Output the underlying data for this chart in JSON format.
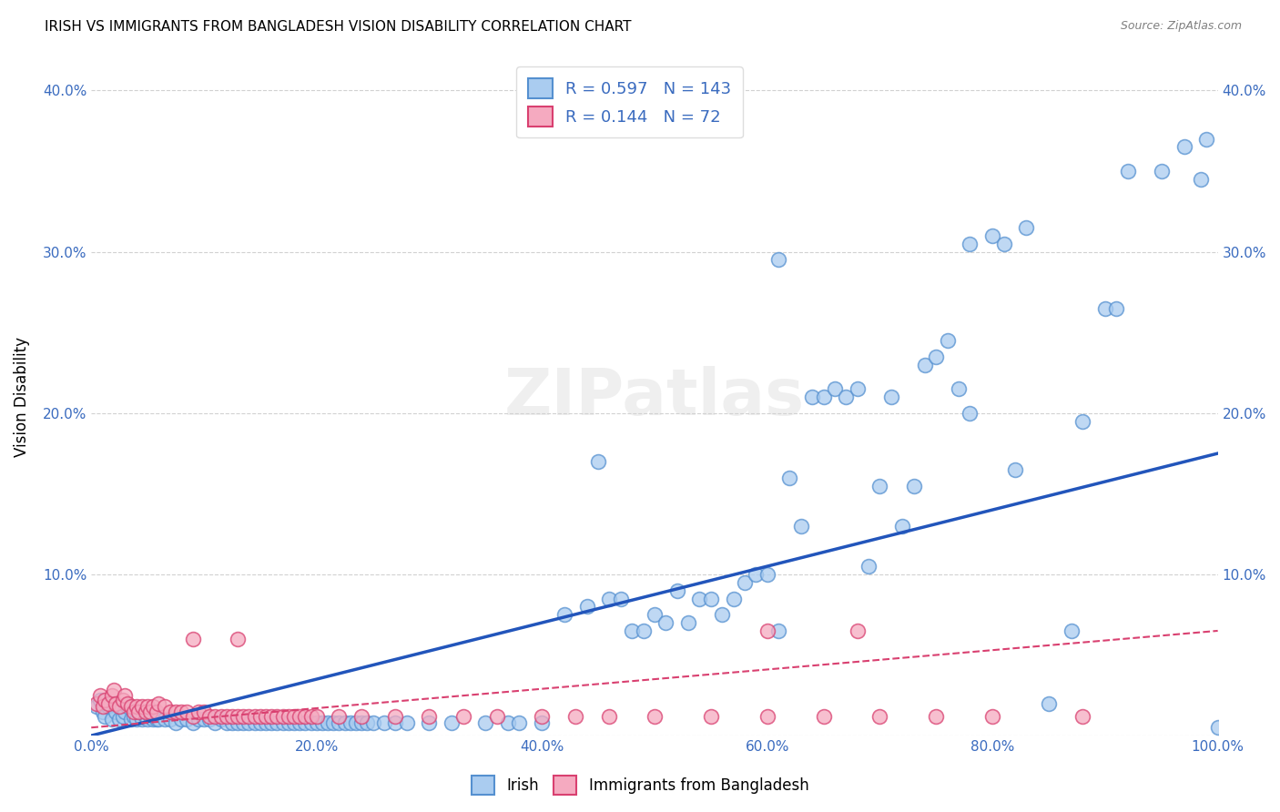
{
  "title": "IRISH VS IMMIGRANTS FROM BANGLADESH VISION DISABILITY CORRELATION CHART",
  "source": "Source: ZipAtlas.com",
  "ylabel": "Vision Disability",
  "xlim": [
    0.0,
    1.0
  ],
  "ylim": [
    0.0,
    0.42
  ],
  "xtick_vals": [
    0.0,
    0.2,
    0.4,
    0.6,
    0.8,
    1.0
  ],
  "xtick_labels": [
    "0.0%",
    "20.0%",
    "40.0%",
    "60.0%",
    "80.0%",
    "100.0%"
  ],
  "ytick_vals": [
    0.0,
    0.1,
    0.2,
    0.3,
    0.4
  ],
  "ytick_labels": [
    "",
    "10.0%",
    "20.0%",
    "30.0%",
    "40.0%"
  ],
  "irish_color": "#aaccf0",
  "irish_edge_color": "#5590d0",
  "bangladesh_color": "#f5aac0",
  "bangladesh_edge_color": "#d94070",
  "irish_line_color": "#2255bb",
  "bangladesh_line_color": "#d94070",
  "legend_irish_label": "Irish",
  "legend_bangladesh_label": "Immigrants from Bangladesh",
  "R_irish": 0.597,
  "N_irish": 143,
  "R_bangladesh": 0.144,
  "N_bangladesh": 72,
  "watermark": "ZIPatlas",
  "grid_color": "#cccccc",
  "title_fontsize": 11,
  "axis_color": "#3a6bbf",
  "irish_trend_x0": 0.0,
  "irish_trend_y0": 0.0,
  "irish_trend_x1": 1.0,
  "irish_trend_y1": 0.175,
  "bang_trend_x0": 0.0,
  "bang_trend_y0": 0.005,
  "bang_trend_x1": 1.0,
  "bang_trend_y1": 0.065,
  "irish_x": [
    0.005,
    0.008,
    0.01,
    0.012,
    0.015,
    0.018,
    0.02,
    0.022,
    0.025,
    0.028,
    0.03,
    0.032,
    0.035,
    0.038,
    0.04,
    0.042,
    0.045,
    0.048,
    0.05,
    0.052,
    0.055,
    0.058,
    0.06,
    0.065,
    0.07,
    0.075,
    0.08,
    0.085,
    0.09,
    0.095,
    0.1,
    0.105,
    0.11,
    0.115,
    0.12,
    0.125,
    0.13,
    0.135,
    0.14,
    0.145,
    0.15,
    0.155,
    0.16,
    0.165,
    0.17,
    0.175,
    0.18,
    0.185,
    0.19,
    0.195,
    0.2,
    0.205,
    0.21,
    0.215,
    0.22,
    0.225,
    0.23,
    0.235,
    0.24,
    0.245,
    0.25,
    0.26,
    0.27,
    0.28,
    0.3,
    0.32,
    0.35,
    0.37,
    0.38,
    0.4,
    0.42,
    0.44,
    0.45,
    0.46,
    0.47,
    0.48,
    0.49,
    0.5,
    0.51,
    0.52,
    0.53,
    0.54,
    0.55,
    0.56,
    0.57,
    0.58,
    0.59,
    0.6,
    0.61,
    0.62,
    0.63,
    0.64,
    0.65,
    0.66,
    0.67,
    0.68,
    0.69,
    0.7,
    0.71,
    0.72,
    0.73,
    0.74,
    0.75,
    0.76,
    0.77,
    0.78,
    0.8,
    0.81,
    0.83,
    0.85,
    0.87,
    0.88,
    0.9,
    0.91,
    0.92,
    0.95,
    0.97,
    0.985,
    0.99,
    1.0,
    0.61,
    0.82,
    0.78
  ],
  "irish_y": [
    0.018,
    0.022,
    0.015,
    0.012,
    0.018,
    0.01,
    0.02,
    0.015,
    0.01,
    0.012,
    0.015,
    0.018,
    0.01,
    0.012,
    0.01,
    0.015,
    0.01,
    0.012,
    0.01,
    0.012,
    0.01,
    0.01,
    0.01,
    0.01,
    0.01,
    0.008,
    0.01,
    0.01,
    0.008,
    0.01,
    0.01,
    0.01,
    0.008,
    0.01,
    0.008,
    0.008,
    0.008,
    0.008,
    0.008,
    0.008,
    0.008,
    0.008,
    0.008,
    0.008,
    0.008,
    0.008,
    0.008,
    0.008,
    0.008,
    0.008,
    0.008,
    0.008,
    0.008,
    0.008,
    0.008,
    0.008,
    0.008,
    0.008,
    0.008,
    0.008,
    0.008,
    0.008,
    0.008,
    0.008,
    0.008,
    0.008,
    0.008,
    0.008,
    0.008,
    0.008,
    0.075,
    0.08,
    0.17,
    0.085,
    0.085,
    0.065,
    0.065,
    0.075,
    0.07,
    0.09,
    0.07,
    0.085,
    0.085,
    0.075,
    0.085,
    0.095,
    0.1,
    0.1,
    0.065,
    0.16,
    0.13,
    0.21,
    0.21,
    0.215,
    0.21,
    0.215,
    0.105,
    0.155,
    0.21,
    0.13,
    0.155,
    0.23,
    0.235,
    0.245,
    0.215,
    0.2,
    0.31,
    0.305,
    0.315,
    0.02,
    0.065,
    0.195,
    0.265,
    0.265,
    0.35,
    0.35,
    0.365,
    0.345,
    0.37,
    0.005,
    0.295,
    0.165,
    0.305
  ],
  "bang_x": [
    0.005,
    0.008,
    0.01,
    0.012,
    0.015,
    0.018,
    0.02,
    0.022,
    0.025,
    0.028,
    0.03,
    0.032,
    0.035,
    0.038,
    0.04,
    0.042,
    0.045,
    0.048,
    0.05,
    0.052,
    0.055,
    0.058,
    0.06,
    0.065,
    0.07,
    0.075,
    0.08,
    0.085,
    0.09,
    0.095,
    0.1,
    0.105,
    0.11,
    0.115,
    0.12,
    0.125,
    0.13,
    0.135,
    0.14,
    0.145,
    0.15,
    0.155,
    0.16,
    0.165,
    0.17,
    0.175,
    0.18,
    0.185,
    0.19,
    0.195,
    0.2,
    0.22,
    0.24,
    0.27,
    0.3,
    0.33,
    0.36,
    0.4,
    0.43,
    0.46,
    0.5,
    0.55,
    0.6,
    0.65,
    0.7,
    0.75,
    0.8,
    0.88,
    0.6,
    0.68,
    0.09,
    0.13
  ],
  "bang_y": [
    0.02,
    0.025,
    0.018,
    0.022,
    0.02,
    0.025,
    0.028,
    0.02,
    0.018,
    0.022,
    0.025,
    0.02,
    0.018,
    0.015,
    0.018,
    0.015,
    0.018,
    0.015,
    0.018,
    0.015,
    0.018,
    0.015,
    0.02,
    0.018,
    0.015,
    0.015,
    0.015,
    0.015,
    0.012,
    0.015,
    0.015,
    0.012,
    0.012,
    0.012,
    0.012,
    0.012,
    0.012,
    0.012,
    0.012,
    0.012,
    0.012,
    0.012,
    0.012,
    0.012,
    0.012,
    0.012,
    0.012,
    0.012,
    0.012,
    0.012,
    0.012,
    0.012,
    0.012,
    0.012,
    0.012,
    0.012,
    0.012,
    0.012,
    0.012,
    0.012,
    0.012,
    0.012,
    0.012,
    0.012,
    0.012,
    0.012,
    0.012,
    0.012,
    0.065,
    0.065,
    0.06,
    0.06
  ]
}
